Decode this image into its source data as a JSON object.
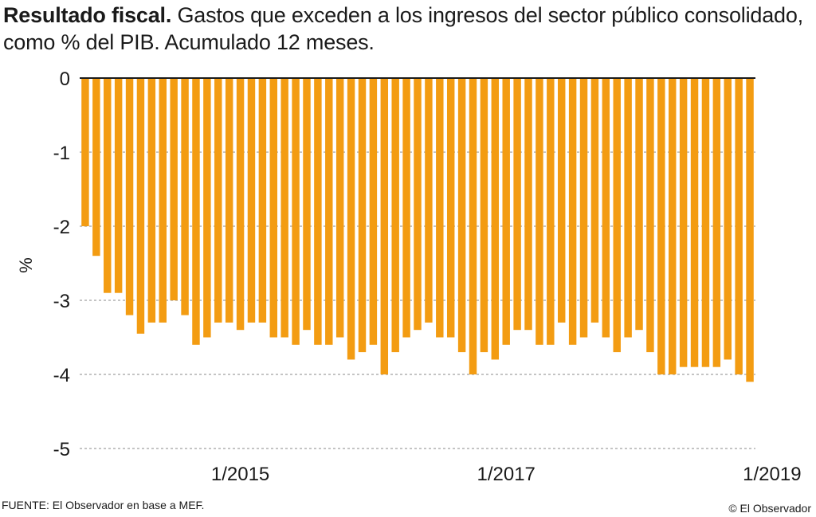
{
  "header": {
    "title_bold": "Resultado fiscal.",
    "title_rest": " Gastos que exceden a los ingresos del sector público consolidado, como % del PIB. Acumulado 12 meses."
  },
  "colors": {
    "bar": "#f39c12",
    "grid": "#8a8a8a",
    "axis": "#1a1a1a"
  },
  "chart_data": {
    "type": "bar",
    "title": "Resultado fiscal. Gastos que exceden a los ingresos del sector público consolidado, como % del PIB. Acumulado 12 meses.",
    "xlabel": "",
    "ylabel": "%",
    "ylim": [
      -5,
      0
    ],
    "yticks": [
      0,
      -1,
      -2,
      -3,
      -4,
      -5
    ],
    "ytick_labels": [
      "0",
      "-1",
      "-2",
      "-3",
      "-4",
      "-5"
    ],
    "xtick_labels": [
      "1/2015",
      "1/2017",
      "1/2019"
    ],
    "xtick_index": [
      14,
      38,
      62
    ],
    "grid": true,
    "values": [
      -2.0,
      -2.4,
      -2.9,
      -2.9,
      -3.2,
      -3.45,
      -3.3,
      -3.3,
      -3.0,
      -3.2,
      -3.6,
      -3.5,
      -3.3,
      -3.3,
      -3.4,
      -3.3,
      -3.3,
      -3.5,
      -3.5,
      -3.6,
      -3.4,
      -3.6,
      -3.6,
      -3.5,
      -3.8,
      -3.7,
      -3.6,
      -4.0,
      -3.7,
      -3.5,
      -3.4,
      -3.3,
      -3.5,
      -3.5,
      -3.7,
      -4.0,
      -3.7,
      -3.8,
      -3.6,
      -3.4,
      -3.4,
      -3.6,
      -3.6,
      -3.3,
      -3.6,
      -3.5,
      -3.3,
      -3.5,
      -3.7,
      -3.5,
      -3.4,
      -3.7,
      -4.0,
      -4.0,
      -3.9,
      -3.9,
      -3.9,
      -3.9,
      -3.8,
      -4.0,
      -4.1
    ]
  },
  "footer": {
    "source": "FUENTE: El Observador en base a MEF.",
    "copyright": "© El Observador"
  }
}
